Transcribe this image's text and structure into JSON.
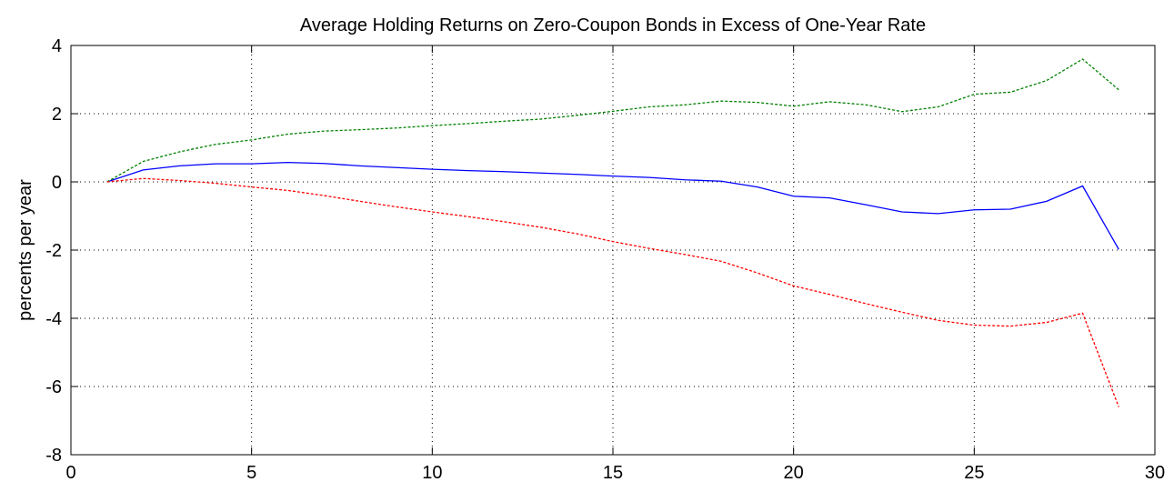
{
  "chart_data": {
    "type": "line",
    "title": "Average Holding Returns on Zero-Coupon Bonds in Excess of One-Year Rate",
    "y_label": "percents per year",
    "x": [
      1,
      2,
      3,
      4,
      5,
      6,
      7,
      8,
      9,
      10,
      11,
      12,
      13,
      14,
      15,
      16,
      17,
      18,
      19,
      20,
      21,
      22,
      23,
      24,
      25,
      26,
      27,
      28,
      29
    ],
    "series": [
      {
        "color": "#0000ff",
        "linestyle": "solid",
        "values": [
          0,
          0.35,
          0.47,
          0.53,
          0.53,
          0.57,
          0.54,
          0.47,
          0.42,
          0.37,
          0.33,
          0.3,
          0.26,
          0.22,
          0.17,
          0.13,
          0.06,
          0.02,
          -0.15,
          -0.42,
          -0.47,
          -0.67,
          -0.88,
          -0.93,
          -0.82,
          -0.8,
          -0.57,
          -0.12,
          -1.98
        ]
      },
      {
        "color": "#008000",
        "linestyle": "dashed",
        "values": [
          0,
          0.6,
          0.88,
          1.1,
          1.23,
          1.4,
          1.49,
          1.53,
          1.58,
          1.65,
          1.71,
          1.78,
          1.84,
          1.95,
          2.07,
          2.2,
          2.26,
          2.37,
          2.33,
          2.22,
          2.35,
          2.26,
          2.06,
          2.2,
          2.57,
          2.63,
          2.97,
          3.6,
          2.7
        ]
      },
      {
        "color": "#ff0000",
        "linestyle": "dashed",
        "values": [
          0,
          0.1,
          0.04,
          -0.04,
          -0.15,
          -0.25,
          -0.4,
          -0.57,
          -0.73,
          -0.88,
          -1.02,
          -1.17,
          -1.33,
          -1.52,
          -1.75,
          -1.95,
          -2.13,
          -2.33,
          -2.67,
          -3.05,
          -3.3,
          -3.57,
          -3.82,
          -4.06,
          -4.2,
          -4.23,
          -4.12,
          -3.85,
          -6.6
        ]
      }
    ],
    "xlim": [
      0,
      30
    ],
    "xticks": [
      0,
      5,
      10,
      15,
      20,
      25,
      30
    ],
    "ylim": [
      -8,
      4
    ],
    "yticks": [
      -8,
      -6,
      -4,
      -2,
      0,
      2,
      4
    ],
    "grid": true
  }
}
